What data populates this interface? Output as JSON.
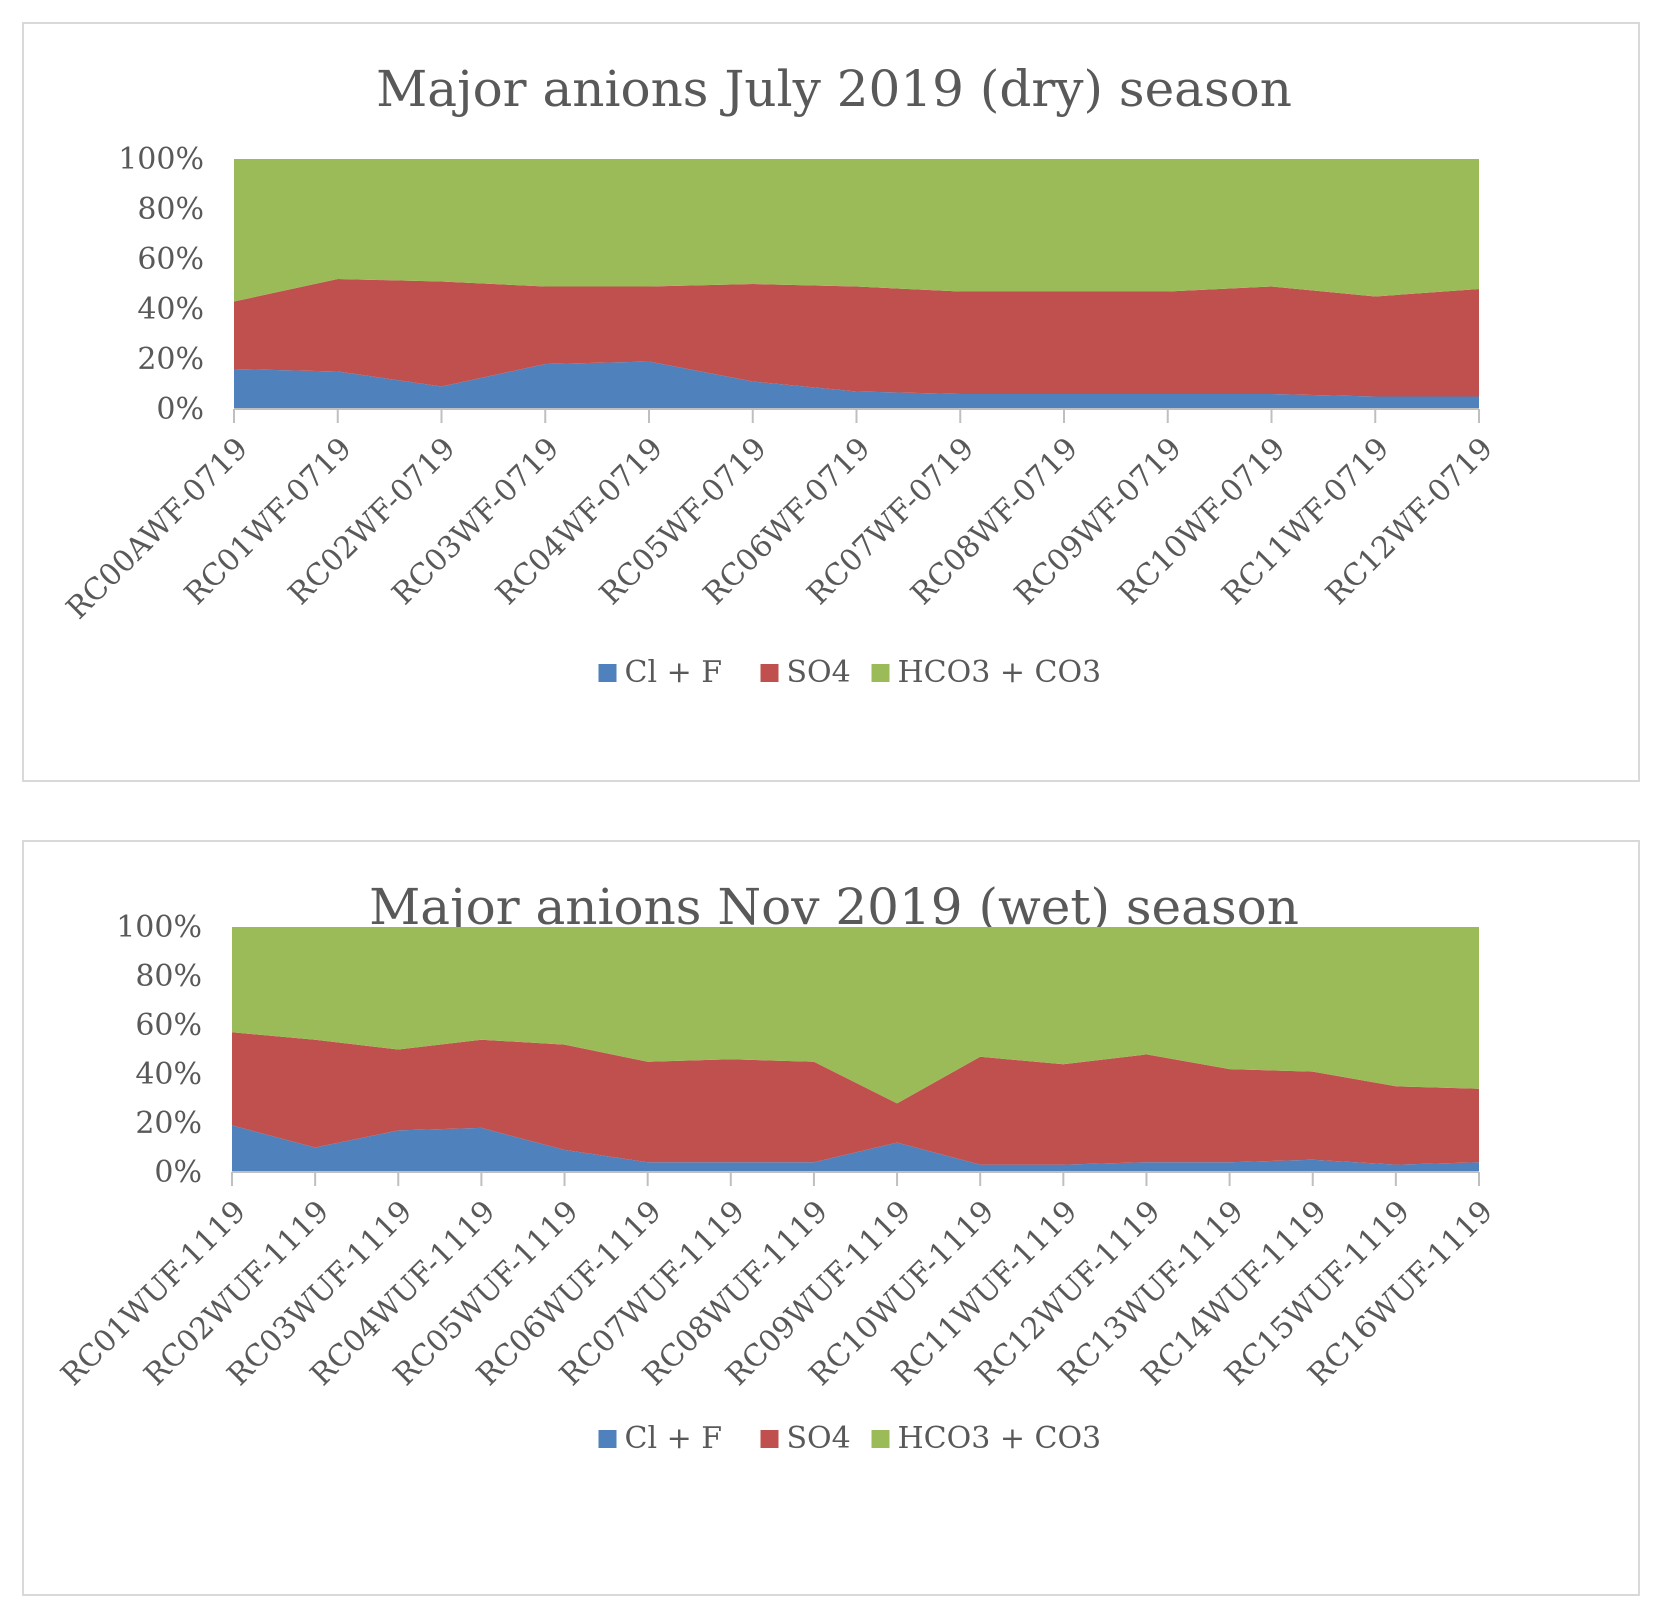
{
  "chart_data": [
    {
      "type": "area",
      "stacked_percent": true,
      "title": "Major anions July 2019 (dry) season",
      "xlabel": "",
      "ylabel": "",
      "ylim": [
        0,
        100
      ],
      "y_ticks": [
        "0%",
        "20%",
        "40%",
        "60%",
        "80%",
        "100%"
      ],
      "grid": false,
      "legend_position": "bottom",
      "categories": [
        "RC00AWF-0719",
        "RC01WF-0719",
        "RC02WF-0719",
        "RC03WF-0719",
        "RC04WF-0719",
        "RC05WF-0719",
        "RC06WF-0719",
        "RC07WF-0719",
        "RC08WF-0719",
        "RC09WF-0719",
        "RC10WF-0719",
        "RC11WF-0719",
        "RC12WF-0719"
      ],
      "series": [
        {
          "name": "Cl + F",
          "color": "#4f81bd",
          "values": [
            16,
            15,
            9,
            18,
            19,
            11,
            7,
            6,
            6,
            6,
            6,
            5,
            5
          ]
        },
        {
          "name": "SO4",
          "color": "#c0504d",
          "values": [
            27,
            37,
            42,
            31,
            30,
            39,
            42,
            41,
            41,
            41,
            43,
            40,
            43
          ]
        },
        {
          "name": "HCO3 + CO3",
          "color": "#9bbb59",
          "values": [
            57,
            48,
            49,
            51,
            51,
            50,
            51,
            53,
            53,
            53,
            51,
            55,
            52
          ]
        }
      ]
    },
    {
      "type": "area",
      "stacked_percent": true,
      "title": "Major anions Nov 2019 (wet) season",
      "xlabel": "",
      "ylabel": "",
      "ylim": [
        0,
        100
      ],
      "y_ticks": [
        "0%",
        "20%",
        "40%",
        "60%",
        "80%",
        "100%"
      ],
      "grid": false,
      "legend_position": "bottom",
      "categories": [
        "RC01WUF-1119",
        "RC02WUF-1119",
        "RC03WUF-1119",
        "RC04WUF-1119",
        "RC05WUF-1119",
        "RC06WUF-1119",
        "RC07WUF-1119",
        "RC08WUF-1119",
        "RC09WUF-1119",
        "RC10WUF-1119",
        "RC11WUF-1119",
        "RC12WUF-1119",
        "RC13WUF-1119",
        "RC14WUF-1119",
        "RC15WUF-1119",
        "RC16WUF-1119"
      ],
      "series": [
        {
          "name": "Cl + F",
          "color": "#4f81bd",
          "values": [
            19,
            10,
            17,
            18,
            9,
            4,
            4,
            4,
            12,
            3,
            3,
            4,
            4,
            5,
            3,
            4
          ]
        },
        {
          "name": "SO4",
          "color": "#c0504d",
          "values": [
            38,
            44,
            33,
            36,
            43,
            41,
            42,
            41,
            16,
            44,
            41,
            44,
            38,
            36,
            32,
            30
          ]
        },
        {
          "name": "HCO3 + CO3",
          "color": "#9bbb59",
          "values": [
            43,
            46,
            50,
            46,
            48,
            55,
            54,
            55,
            72,
            53,
            56,
            52,
            58,
            59,
            65,
            66
          ]
        }
      ]
    }
  ]
}
